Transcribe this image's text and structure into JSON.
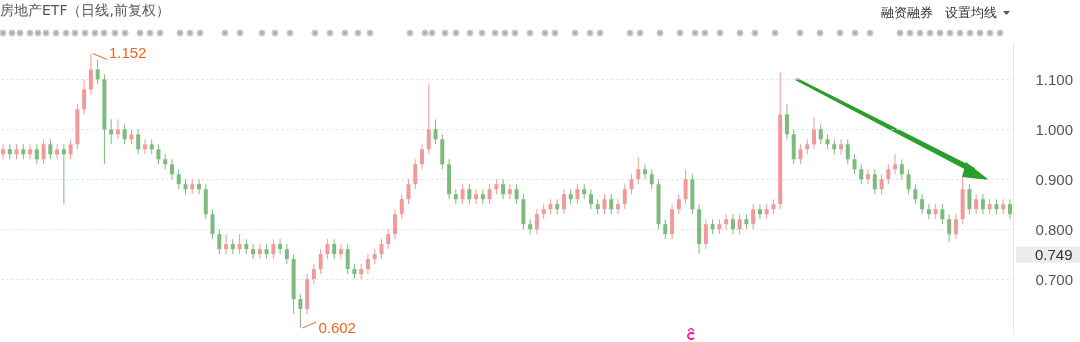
{
  "chart_data": {
    "type": "candlestick",
    "title": "房地产ETF（日线,前复权）",
    "categories": [
      null,
      null,
      null,
      null,
      null,
      null,
      null,
      null,
      null,
      null,
      null,
      null,
      null,
      null,
      null,
      null,
      null,
      null,
      null,
      null,
      null,
      null,
      null,
      null,
      null,
      null,
      null,
      null,
      null,
      null,
      null,
      null,
      null,
      null,
      null,
      null,
      null,
      null,
      null,
      null,
      null,
      null,
      null,
      null,
      null,
      null,
      null,
      null,
      null,
      null,
      null,
      null,
      null,
      null,
      null,
      null,
      null,
      null,
      null,
      null,
      null,
      null,
      null,
      null,
      null,
      null,
      null,
      null,
      null,
      null,
      null,
      null,
      null,
      null,
      null,
      null,
      null,
      null,
      null,
      null,
      null,
      null,
      null,
      null,
      null,
      null,
      null,
      null,
      null,
      null,
      null,
      null,
      null,
      null,
      null,
      null,
      null,
      null,
      null,
      null,
      null,
      null,
      null,
      null,
      null,
      null,
      null,
      null,
      null,
      null,
      null,
      null,
      null,
      null,
      null,
      null,
      null,
      null,
      null,
      null,
      null,
      null,
      null,
      null,
      null,
      null,
      null,
      null,
      null,
      null,
      null,
      null,
      null,
      null,
      null,
      null,
      null,
      null,
      null,
      null,
      null,
      null,
      null,
      null,
      null,
      null,
      null,
      null,
      null,
      null
    ],
    "ohlc": [
      [
        0.95,
        0.97,
        0.94,
        0.96
      ],
      [
        0.96,
        0.97,
        0.94,
        0.95
      ],
      [
        0.95,
        0.97,
        0.94,
        0.96
      ],
      [
        0.96,
        0.97,
        0.94,
        0.95
      ],
      [
        0.95,
        0.97,
        0.94,
        0.96
      ],
      [
        0.96,
        0.97,
        0.93,
        0.94
      ],
      [
        0.94,
        0.98,
        0.93,
        0.97
      ],
      [
        0.97,
        0.98,
        0.94,
        0.95
      ],
      [
        0.95,
        0.97,
        0.94,
        0.96
      ],
      [
        0.96,
        0.97,
        0.85,
        0.95
      ],
      [
        0.95,
        0.98,
        0.94,
        0.97
      ],
      [
        0.97,
        1.05,
        0.96,
        1.04
      ],
      [
        1.04,
        1.1,
        1.03,
        1.08
      ],
      [
        1.08,
        1.152,
        1.07,
        1.12
      ],
      [
        1.12,
        1.14,
        1.09,
        1.1
      ],
      [
        1.1,
        1.11,
        0.93,
        1.0
      ],
      [
        1.0,
        1.02,
        0.97,
        0.99
      ],
      [
        0.99,
        1.02,
        0.98,
        1.0
      ],
      [
        1.0,
        1.01,
        0.97,
        0.98
      ],
      [
        0.98,
        1.0,
        0.97,
        0.99
      ],
      [
        0.99,
        1.0,
        0.95,
        0.96
      ],
      [
        0.96,
        0.98,
        0.95,
        0.97
      ],
      [
        0.97,
        0.98,
        0.95,
        0.96
      ],
      [
        0.96,
        0.97,
        0.93,
        0.94
      ],
      [
        0.94,
        0.95,
        0.92,
        0.93
      ],
      [
        0.93,
        0.94,
        0.9,
        0.91
      ],
      [
        0.91,
        0.92,
        0.88,
        0.89
      ],
      [
        0.89,
        0.9,
        0.87,
        0.88
      ],
      [
        0.88,
        0.9,
        0.87,
        0.89
      ],
      [
        0.89,
        0.9,
        0.87,
        0.88
      ],
      [
        0.88,
        0.89,
        0.82,
        0.83
      ],
      [
        0.83,
        0.84,
        0.78,
        0.79
      ],
      [
        0.79,
        0.8,
        0.75,
        0.76
      ],
      [
        0.76,
        0.79,
        0.75,
        0.77
      ],
      [
        0.77,
        0.78,
        0.75,
        0.76
      ],
      [
        0.76,
        0.79,
        0.75,
        0.77
      ],
      [
        0.77,
        0.78,
        0.75,
        0.76
      ],
      [
        0.76,
        0.77,
        0.74,
        0.75
      ],
      [
        0.75,
        0.77,
        0.74,
        0.76
      ],
      [
        0.76,
        0.77,
        0.74,
        0.75
      ],
      [
        0.75,
        0.78,
        0.74,
        0.77
      ],
      [
        0.77,
        0.78,
        0.75,
        0.76
      ],
      [
        0.76,
        0.77,
        0.73,
        0.74
      ],
      [
        0.74,
        0.75,
        0.63,
        0.66
      ],
      [
        0.66,
        0.67,
        0.602,
        0.64
      ],
      [
        0.64,
        0.71,
        0.63,
        0.7
      ],
      [
        0.7,
        0.73,
        0.69,
        0.72
      ],
      [
        0.72,
        0.76,
        0.71,
        0.75
      ],
      [
        0.75,
        0.78,
        0.74,
        0.77
      ],
      [
        0.77,
        0.78,
        0.74,
        0.75
      ],
      [
        0.75,
        0.77,
        0.74,
        0.76
      ],
      [
        0.76,
        0.77,
        0.71,
        0.72
      ],
      [
        0.72,
        0.73,
        0.7,
        0.71
      ],
      [
        0.71,
        0.73,
        0.7,
        0.72
      ],
      [
        0.72,
        0.75,
        0.71,
        0.74
      ],
      [
        0.74,
        0.76,
        0.73,
        0.75
      ],
      [
        0.75,
        0.78,
        0.74,
        0.77
      ],
      [
        0.77,
        0.8,
        0.76,
        0.79
      ],
      [
        0.79,
        0.84,
        0.78,
        0.83
      ],
      [
        0.83,
        0.87,
        0.82,
        0.86
      ],
      [
        0.86,
        0.9,
        0.85,
        0.89
      ],
      [
        0.89,
        0.94,
        0.88,
        0.93
      ],
      [
        0.93,
        0.97,
        0.92,
        0.96
      ],
      [
        0.96,
        1.09,
        0.95,
        1.0
      ],
      [
        1.0,
        1.02,
        0.97,
        0.98
      ],
      [
        0.98,
        0.99,
        0.92,
        0.93
      ],
      [
        0.93,
        0.94,
        0.86,
        0.87
      ],
      [
        0.87,
        0.88,
        0.85,
        0.86
      ],
      [
        0.86,
        0.89,
        0.85,
        0.88
      ],
      [
        0.88,
        0.89,
        0.85,
        0.86
      ],
      [
        0.86,
        0.88,
        0.85,
        0.87
      ],
      [
        0.87,
        0.88,
        0.85,
        0.86
      ],
      [
        0.86,
        0.89,
        0.85,
        0.88
      ],
      [
        0.88,
        0.9,
        0.87,
        0.89
      ],
      [
        0.89,
        0.9,
        0.86,
        0.87
      ],
      [
        0.87,
        0.89,
        0.86,
        0.88
      ],
      [
        0.88,
        0.89,
        0.85,
        0.86
      ],
      [
        0.86,
        0.87,
        0.8,
        0.81
      ],
      [
        0.81,
        0.82,
        0.79,
        0.8
      ],
      [
        0.8,
        0.84,
        0.79,
        0.83
      ],
      [
        0.83,
        0.85,
        0.82,
        0.84
      ],
      [
        0.84,
        0.86,
        0.83,
        0.85
      ],
      [
        0.85,
        0.86,
        0.83,
        0.84
      ],
      [
        0.84,
        0.88,
        0.83,
        0.87
      ],
      [
        0.87,
        0.88,
        0.85,
        0.86
      ],
      [
        0.86,
        0.89,
        0.85,
        0.88
      ],
      [
        0.88,
        0.89,
        0.86,
        0.87
      ],
      [
        0.87,
        0.88,
        0.84,
        0.85
      ],
      [
        0.85,
        0.86,
        0.83,
        0.84
      ],
      [
        0.84,
        0.87,
        0.83,
        0.86
      ],
      [
        0.86,
        0.87,
        0.83,
        0.84
      ],
      [
        0.84,
        0.86,
        0.83,
        0.85
      ],
      [
        0.85,
        0.89,
        0.84,
        0.88
      ],
      [
        0.88,
        0.91,
        0.87,
        0.9
      ],
      [
        0.9,
        0.945,
        0.89,
        0.92
      ],
      [
        0.92,
        0.93,
        0.9,
        0.91
      ],
      [
        0.91,
        0.92,
        0.88,
        0.89
      ],
      [
        0.89,
        0.9,
        0.8,
        0.81
      ],
      [
        0.81,
        0.82,
        0.78,
        0.79
      ],
      [
        0.79,
        0.85,
        0.78,
        0.84
      ],
      [
        0.84,
        0.87,
        0.83,
        0.86
      ],
      [
        0.86,
        0.92,
        0.85,
        0.9
      ],
      [
        0.9,
        0.91,
        0.83,
        0.84
      ],
      [
        0.84,
        0.85,
        0.75,
        0.77
      ],
      [
        0.77,
        0.82,
        0.76,
        0.81
      ],
      [
        0.81,
        0.82,
        0.79,
        0.8
      ],
      [
        0.8,
        0.82,
        0.79,
        0.81
      ],
      [
        0.81,
        0.83,
        0.8,
        0.82
      ],
      [
        0.82,
        0.83,
        0.79,
        0.8
      ],
      [
        0.8,
        0.83,
        0.79,
        0.82
      ],
      [
        0.82,
        0.83,
        0.8,
        0.81
      ],
      [
        0.81,
        0.85,
        0.8,
        0.84
      ],
      [
        0.84,
        0.85,
        0.82,
        0.83
      ],
      [
        0.83,
        0.85,
        0.82,
        0.84
      ],
      [
        0.84,
        0.86,
        0.83,
        0.85
      ],
      [
        0.85,
        1.115,
        0.84,
        1.03
      ],
      [
        1.03,
        1.05,
        0.98,
        0.99
      ],
      [
        0.99,
        1.0,
        0.93,
        0.94
      ],
      [
        0.94,
        0.97,
        0.93,
        0.96
      ],
      [
        0.96,
        0.98,
        0.95,
        0.97
      ],
      [
        0.97,
        1.025,
        0.96,
        1.0
      ],
      [
        1.0,
        1.01,
        0.97,
        0.98
      ],
      [
        0.98,
        0.99,
        0.96,
        0.97
      ],
      [
        0.97,
        0.98,
        0.95,
        0.96
      ],
      [
        0.96,
        0.98,
        0.95,
        0.97
      ],
      [
        0.97,
        0.98,
        0.93,
        0.94
      ],
      [
        0.94,
        0.95,
        0.91,
        0.92
      ],
      [
        0.92,
        0.93,
        0.89,
        0.9
      ],
      [
        0.9,
        0.92,
        0.89,
        0.91
      ],
      [
        0.91,
        0.92,
        0.87,
        0.88
      ],
      [
        0.88,
        0.91,
        0.87,
        0.9
      ],
      [
        0.9,
        0.93,
        0.89,
        0.92
      ],
      [
        0.92,
        0.95,
        0.91,
        0.93
      ],
      [
        0.93,
        0.94,
        0.9,
        0.91
      ],
      [
        0.91,
        0.92,
        0.87,
        0.88
      ],
      [
        0.88,
        0.89,
        0.85,
        0.86
      ],
      [
        0.86,
        0.87,
        0.83,
        0.84
      ],
      [
        0.84,
        0.85,
        0.82,
        0.83
      ],
      [
        0.83,
        0.85,
        0.82,
        0.84
      ],
      [
        0.84,
        0.85,
        0.81,
        0.82
      ],
      [
        0.82,
        0.83,
        0.775,
        0.79
      ],
      [
        0.79,
        0.83,
        0.78,
        0.82
      ],
      [
        0.82,
        0.905,
        0.81,
        0.88
      ],
      [
        0.88,
        0.89,
        0.83,
        0.84
      ],
      [
        0.84,
        0.87,
        0.83,
        0.86
      ],
      [
        0.86,
        0.87,
        0.83,
        0.84
      ],
      [
        0.84,
        0.86,
        0.83,
        0.85
      ],
      [
        0.85,
        0.86,
        0.83,
        0.84
      ],
      [
        0.84,
        0.86,
        0.83,
        0.85
      ],
      [
        0.85,
        0.86,
        0.82,
        0.83
      ]
    ],
    "colors": [
      "#f09a9a",
      "#7dbb7d",
      "#f09a9a",
      "#7dbb7d",
      "#f09a9a",
      "#7dbb7d",
      "#f09a9a",
      "#7dbb7d",
      "#f09a9a",
      "#7dbb7d",
      "#f09a9a",
      "#f09a9a",
      "#f09a9a",
      "#f09a9a",
      "#7dbb7d",
      "#7dbb7d",
      "#7dbb7d",
      "#f09a9a",
      "#7dbb7d",
      "#f09a9a",
      "#7dbb7d",
      "#f09a9a",
      "#7dbb7d",
      "#7dbb7d",
      "#7dbb7d",
      "#7dbb7d",
      "#7dbb7d",
      "#7dbb7d",
      "#f09a9a",
      "#7dbb7d",
      "#7dbb7d",
      "#7dbb7d",
      "#7dbb7d",
      "#f09a9a",
      "#7dbb7d",
      "#f09a9a",
      "#7dbb7d",
      "#7dbb7d",
      "#f09a9a",
      "#7dbb7d",
      "#f09a9a",
      "#7dbb7d",
      "#7dbb7d",
      "#7dbb7d",
      "#7dbb7d",
      "#f09a9a",
      "#f09a9a",
      "#f09a9a",
      "#f09a9a",
      "#7dbb7d",
      "#f09a9a",
      "#7dbb7d",
      "#7dbb7d",
      "#f09a9a",
      "#f09a9a",
      "#f09a9a",
      "#f09a9a",
      "#f09a9a",
      "#f09a9a",
      "#f09a9a",
      "#f09a9a",
      "#f09a9a",
      "#f09a9a",
      "#f09a9a",
      "#7dbb7d",
      "#7dbb7d",
      "#7dbb7d",
      "#7dbb7d",
      "#f09a9a",
      "#7dbb7d",
      "#f09a9a",
      "#7dbb7d",
      "#f09a9a",
      "#f09a9a",
      "#7dbb7d",
      "#f09a9a",
      "#7dbb7d",
      "#7dbb7d",
      "#7dbb7d",
      "#f09a9a",
      "#f09a9a",
      "#f09a9a",
      "#7dbb7d",
      "#f09a9a",
      "#7dbb7d",
      "#f09a9a",
      "#7dbb7d",
      "#7dbb7d",
      "#7dbb7d",
      "#f09a9a",
      "#7dbb7d",
      "#f09a9a",
      "#f09a9a",
      "#f09a9a",
      "#f09a9a",
      "#7dbb7d",
      "#7dbb7d",
      "#7dbb7d",
      "#7dbb7d",
      "#f09a9a",
      "#f09a9a",
      "#f09a9a",
      "#7dbb7d",
      "#7dbb7d",
      "#f09a9a",
      "#7dbb7d",
      "#f09a9a",
      "#f09a9a",
      "#7dbb7d",
      "#f09a9a",
      "#7dbb7d",
      "#f09a9a",
      "#7dbb7d",
      "#f09a9a",
      "#f09a9a",
      "#f09a9a",
      "#7dbb7d",
      "#7dbb7d",
      "#f09a9a",
      "#f09a9a",
      "#f09a9a",
      "#7dbb7d",
      "#7dbb7d",
      "#7dbb7d",
      "#f09a9a",
      "#7dbb7d",
      "#7dbb7d",
      "#7dbb7d",
      "#f09a9a",
      "#7dbb7d",
      "#f09a9a",
      "#f09a9a",
      "#f09a9a",
      "#7dbb7d",
      "#7dbb7d",
      "#7dbb7d",
      "#7dbb7d",
      "#7dbb7d",
      "#f09a9a",
      "#7dbb7d",
      "#7dbb7d",
      "#f09a9a",
      "#f09a9a",
      "#7dbb7d",
      "#f09a9a",
      "#7dbb7d",
      "#f09a9a",
      "#7dbb7d",
      "#f09a9a",
      "#7dbb7d"
    ],
    "ylim": [
      0.59,
      1.175
    ],
    "yticks": [
      {
        "value": 0.7,
        "label": "0.700"
      },
      {
        "value": 0.8,
        "label": "0.800"
      },
      {
        "value": 0.9,
        "label": "0.900"
      },
      {
        "value": 1.0,
        "label": "1.000"
      },
      {
        "value": 1.1,
        "label": "1.100"
      }
    ],
    "tick_labels": "y",
    "grid": "y",
    "ref_lines": [
      {
        "axis": "y",
        "value": 0.749,
        "label": "0.749"
      }
    ],
    "annotations": [
      "1.152",
      "0.602",
      "融资融券",
      "设置均线"
    ]
  }
}
